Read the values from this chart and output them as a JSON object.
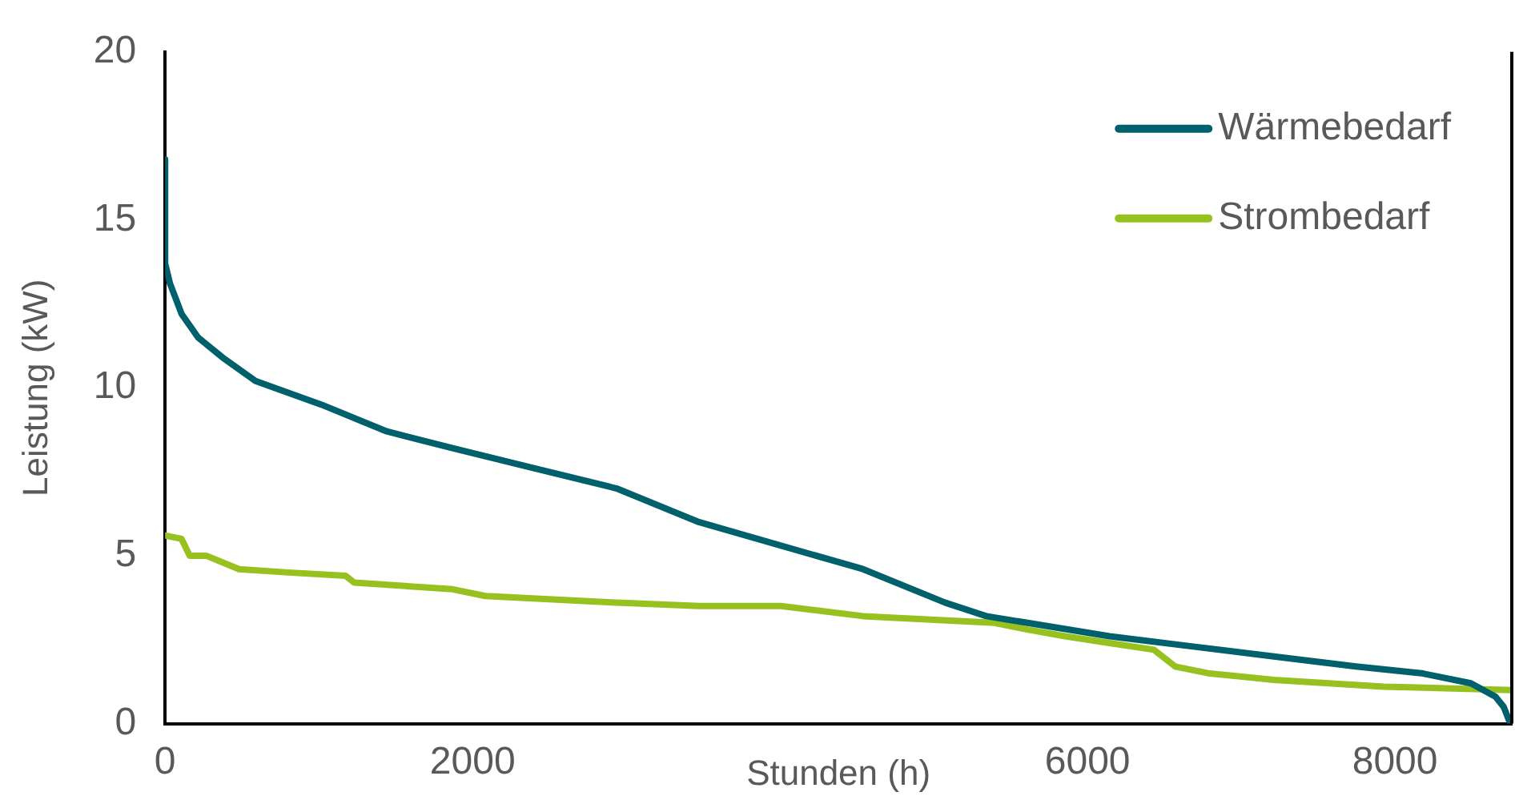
{
  "chart_data": {
    "type": "line",
    "xlabel": "Stunden (h)",
    "ylabel": "Leistung (kW)",
    "xlim": [
      0,
      8760
    ],
    "xticks": [
      0,
      2000,
      6000,
      8000
    ],
    "ylim": [
      0,
      20
    ],
    "yticks": [
      0,
      5,
      10,
      15,
      20
    ],
    "grid": false,
    "legend": "top right",
    "marker": "none",
    "line_style": "solid",
    "series": [
      {
        "name": "Wärmebedarf",
        "color": "#00606b",
        "x": [
          0,
          0,
          32,
          107,
          214,
          374,
          588,
          1015,
          1442,
          1870,
          2404,
          2938,
          3472,
          4540,
          5075,
          5342,
          5609,
          6143,
          6677,
          7212,
          7746,
          8173,
          8494,
          8654,
          8707,
          8750
        ],
        "values": [
          16.8,
          13.7,
          13.1,
          12.2,
          11.5,
          10.9,
          10.2,
          9.5,
          8.7,
          8.2,
          7.6,
          7.0,
          6.0,
          4.6,
          3.6,
          3.2,
          3.0,
          2.6,
          2.3,
          2.0,
          1.7,
          1.5,
          1.2,
          0.8,
          0.5,
          0
        ]
      },
      {
        "name": "Strombedarf",
        "color": "#97c11f",
        "x": [
          0,
          107,
          160,
          267,
          481,
          801,
          1175,
          1229,
          1870,
          2083,
          2938,
          3472,
          4006,
          4540,
          5395,
          5609,
          5855,
          6143,
          6432,
          6571,
          6784,
          7212,
          7927,
          8760
        ],
        "values": [
          5.6,
          5.5,
          5.0,
          5.0,
          4.6,
          4.5,
          4.4,
          4.2,
          4.0,
          3.8,
          3.6,
          3.5,
          3.5,
          3.2,
          3.0,
          2.8,
          2.6,
          2.4,
          2.2,
          1.7,
          1.5,
          1.3,
          1.1,
          1.0
        ]
      }
    ]
  }
}
